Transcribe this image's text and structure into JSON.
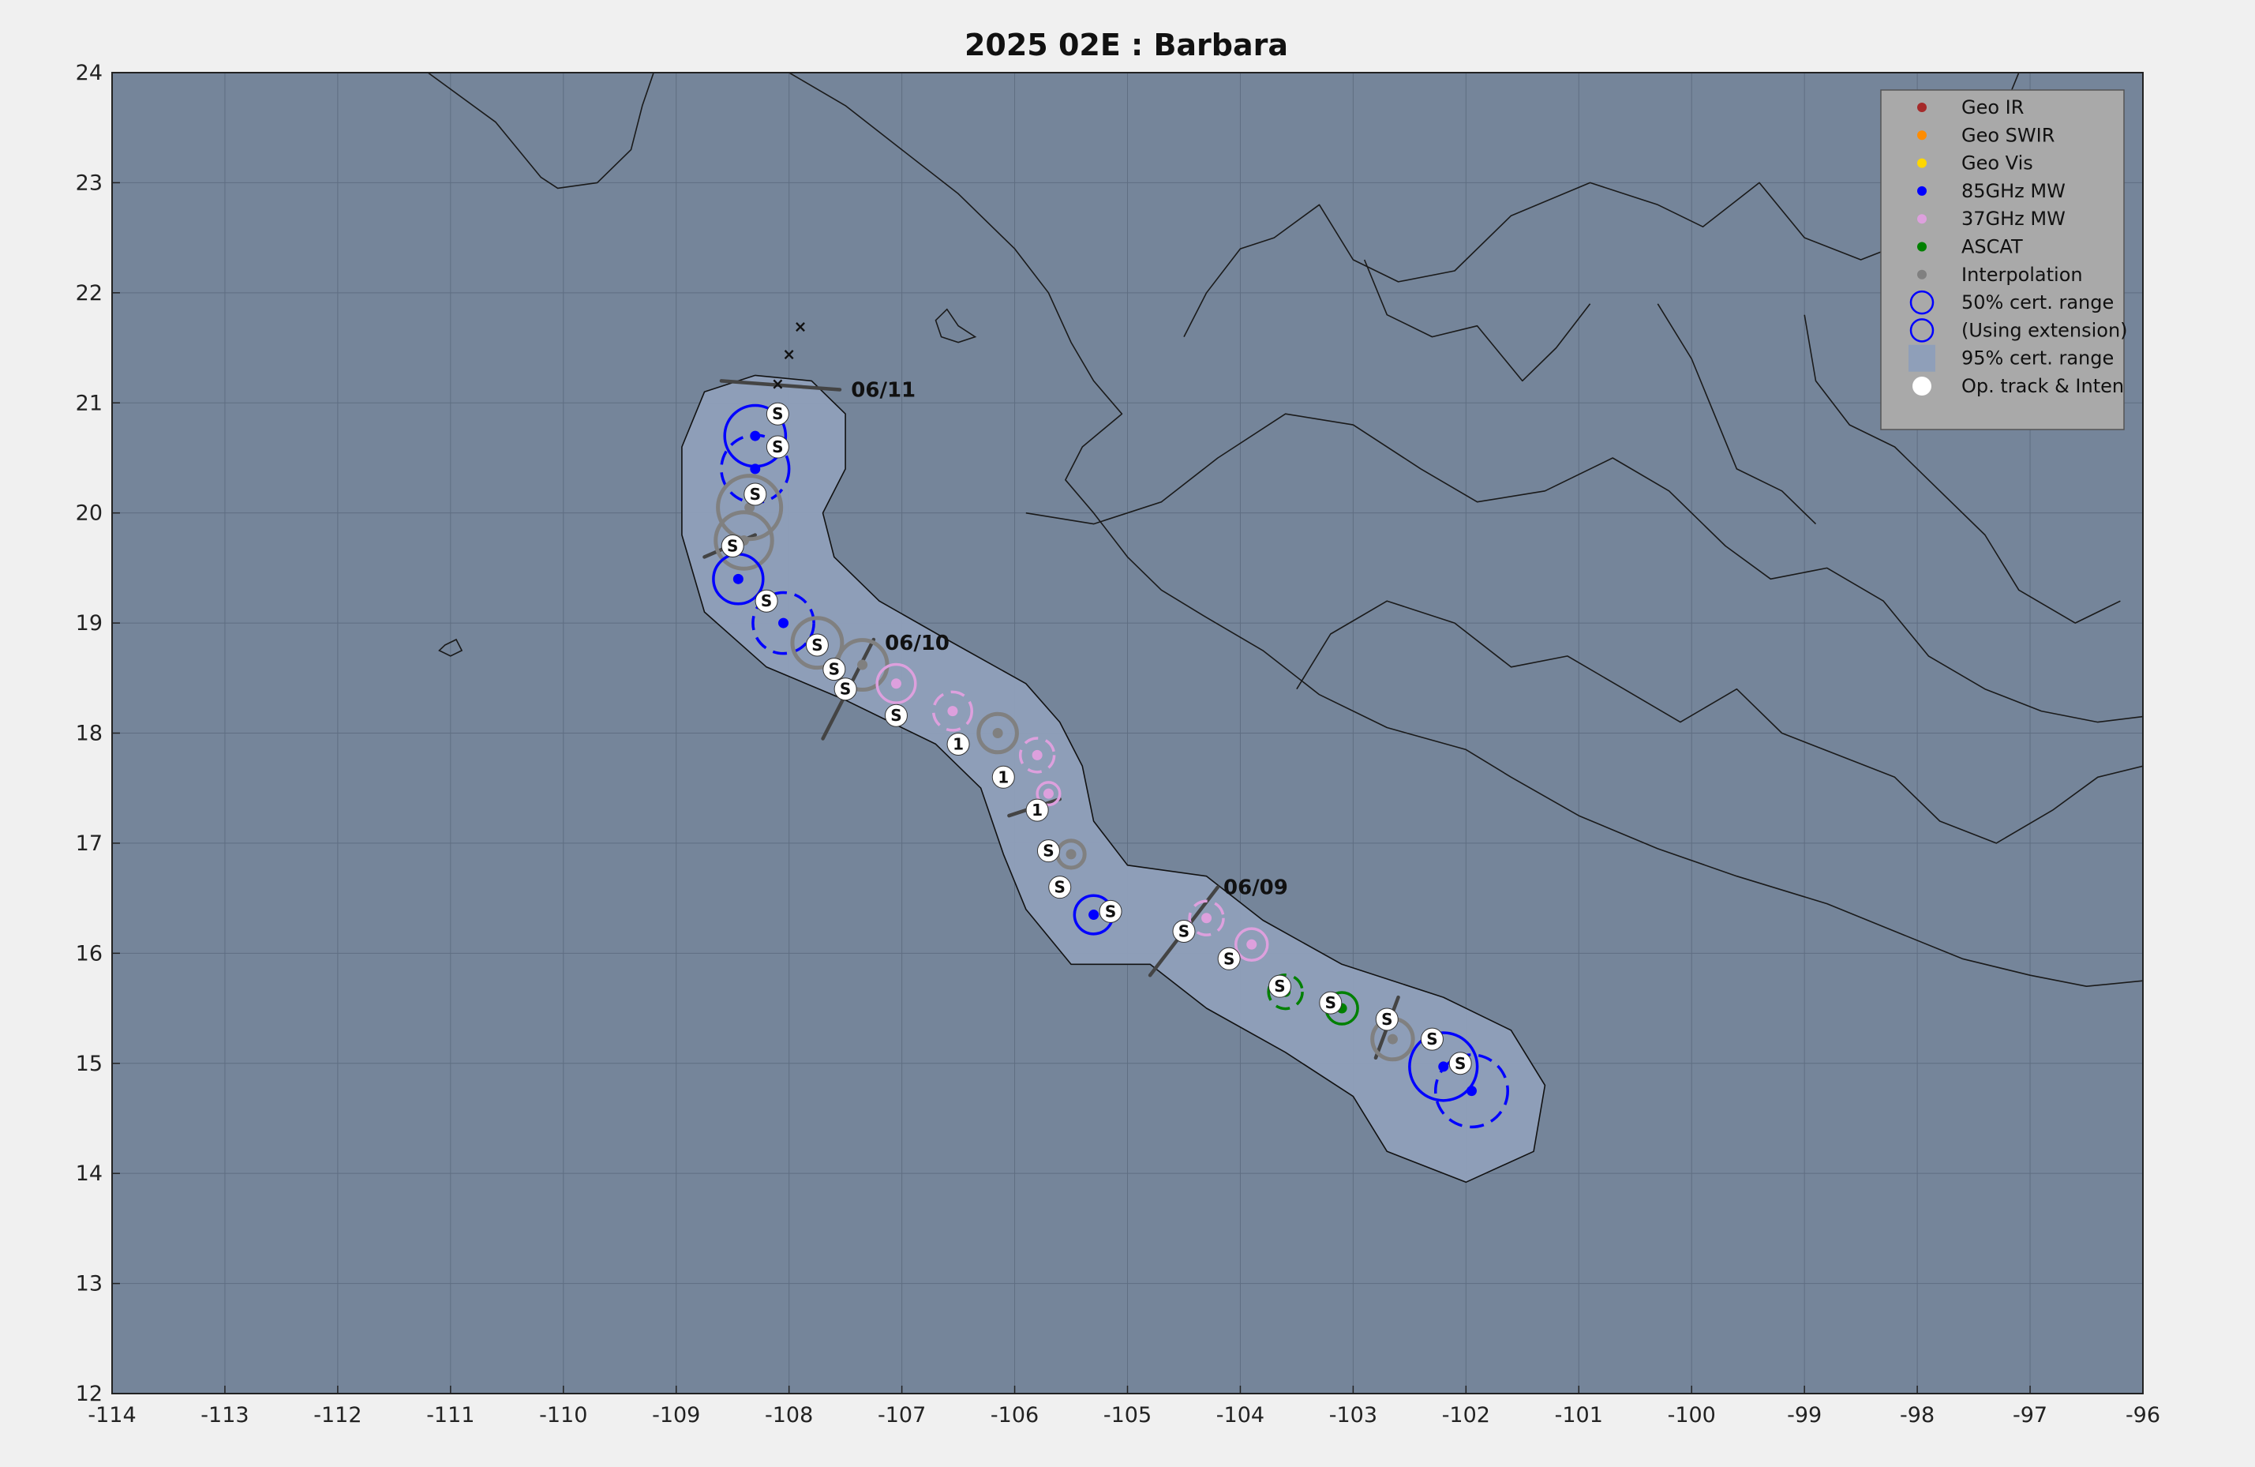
{
  "title": "2025  02E :  Barbara",
  "colors": {
    "figure_bg": "#f0f0f0",
    "ocean": "#75859a",
    "cone": "#8f9fb9",
    "geo_ir": "#a52a2a",
    "geo_swir": "#ff8c00",
    "geo_vis": "#ffd700",
    "mw85": "#0000ff",
    "mw37": "#dda0dd",
    "ascat": "#008000",
    "interp": "#808080",
    "optrack": "#ffffff"
  },
  "axes": {
    "xlim": [
      -114,
      -96
    ],
    "ylim": [
      12,
      24
    ],
    "xticks": [
      "-114",
      "-113",
      "-112",
      "-111",
      "-110",
      "-109",
      "-108",
      "-107",
      "-106",
      "-105",
      "-104",
      "-103",
      "-102",
      "-101",
      "-100",
      "-99",
      "-98",
      "-97",
      "-96"
    ],
    "yticks": [
      "12",
      "13",
      "14",
      "15",
      "16",
      "17",
      "18",
      "19",
      "20",
      "21",
      "22",
      "23",
      "24"
    ],
    "grid": true
  },
  "legend": {
    "placement": "top-right",
    "items": [
      {
        "label": "Geo IR",
        "kind": "dot",
        "color": "#a52a2a"
      },
      {
        "label": "Geo SWIR",
        "kind": "dot",
        "color": "#ff8c00"
      },
      {
        "label": "Geo Vis",
        "kind": "dot",
        "color": "#ffd700"
      },
      {
        "label": "85GHz MW",
        "kind": "dot",
        "color": "#0000ff"
      },
      {
        "label": "37GHz MW",
        "kind": "dot",
        "color": "#dda0dd"
      },
      {
        "label": "ASCAT",
        "kind": "dot",
        "color": "#008000"
      },
      {
        "label": "Interpolation",
        "kind": "dot",
        "color": "#808080"
      },
      {
        "label": "50% cert. range",
        "kind": "circle",
        "color": "#0000ff"
      },
      {
        "label": "(Using extension)",
        "kind": "circle",
        "color": "#0000ff"
      },
      {
        "label": "95% cert. range",
        "kind": "square",
        "color": "#8f9fb9"
      },
      {
        "label": "Op. track & Inten",
        "kind": "white-dot",
        "color": "#ffffff"
      }
    ]
  },
  "cone_95": [
    [
      -108.3,
      21.25
    ],
    [
      -107.8,
      21.2
    ],
    [
      -107.5,
      20.9
    ],
    [
      -107.5,
      20.4
    ],
    [
      -107.7,
      20.0
    ],
    [
      -107.6,
      19.6
    ],
    [
      -107.2,
      19.2
    ],
    [
      -106.6,
      18.85
    ],
    [
      -105.9,
      18.45
    ],
    [
      -105.6,
      18.1
    ],
    [
      -105.4,
      17.7
    ],
    [
      -105.3,
      17.2
    ],
    [
      -105.0,
      16.8
    ],
    [
      -104.3,
      16.7
    ],
    [
      -103.8,
      16.3
    ],
    [
      -103.1,
      15.9
    ],
    [
      -102.2,
      15.6
    ],
    [
      -101.6,
      15.3
    ],
    [
      -101.3,
      14.8
    ],
    [
      -101.4,
      14.2
    ],
    [
      -102.0,
      13.92
    ],
    [
      -102.7,
      14.2
    ],
    [
      -103.0,
      14.7
    ],
    [
      -103.6,
      15.1
    ],
    [
      -104.3,
      15.5
    ],
    [
      -104.8,
      15.9
    ],
    [
      -105.5,
      15.9
    ],
    [
      -105.9,
      16.4
    ],
    [
      -106.1,
      16.9
    ],
    [
      -106.3,
      17.5
    ],
    [
      -106.7,
      17.9
    ],
    [
      -107.5,
      18.3
    ],
    [
      -108.2,
      18.6
    ],
    [
      -108.75,
      19.1
    ],
    [
      -108.95,
      19.8
    ],
    [
      -108.95,
      20.6
    ],
    [
      -108.75,
      21.1
    ]
  ],
  "fixes": [
    {
      "type": "85GHz MW",
      "lon": -108.3,
      "lat": 20.7,
      "r50": 0.27,
      "dashed": false
    },
    {
      "type": "85GHz MW",
      "lon": -108.3,
      "lat": 20.4,
      "r50": 0.3,
      "dashed": true
    },
    {
      "type": "Interpolation",
      "lon": -108.35,
      "lat": 20.05,
      "r50": 0.28,
      "dashed": false
    },
    {
      "type": "Interpolation",
      "lon": -108.4,
      "lat": 19.75,
      "r50": 0.25,
      "dashed": false
    },
    {
      "type": "85GHz MW",
      "lon": -108.45,
      "lat": 19.4,
      "r50": 0.22,
      "dashed": false
    },
    {
      "type": "85GHz MW",
      "lon": -108.05,
      "lat": 19.0,
      "r50": 0.27,
      "dashed": true
    },
    {
      "type": "Interpolation",
      "lon": -107.75,
      "lat": 18.82,
      "r50": 0.22,
      "dashed": false
    },
    {
      "type": "Interpolation",
      "lon": -107.35,
      "lat": 18.62,
      "r50": 0.22,
      "dashed": false
    },
    {
      "type": "37GHz MW",
      "lon": -107.05,
      "lat": 18.45,
      "r50": 0.17,
      "dashed": false
    },
    {
      "type": "37GHz MW",
      "lon": -106.55,
      "lat": 18.2,
      "r50": 0.17,
      "dashed": true
    },
    {
      "type": "Interpolation",
      "lon": -106.15,
      "lat": 18.0,
      "r50": 0.17,
      "dashed": false
    },
    {
      "type": "37GHz MW",
      "lon": -105.8,
      "lat": 17.8,
      "r50": 0.15,
      "dashed": true
    },
    {
      "type": "37GHz MW",
      "lon": -105.7,
      "lat": 17.45,
      "r50": 0.1,
      "dashed": false
    },
    {
      "type": "Interpolation",
      "lon": -105.5,
      "lat": 16.9,
      "r50": 0.12,
      "dashed": false
    },
    {
      "type": "85GHz MW",
      "lon": -105.3,
      "lat": 16.35,
      "r50": 0.17,
      "dashed": false
    },
    {
      "type": "37GHz MW",
      "lon": -104.3,
      "lat": 16.32,
      "r50": 0.15,
      "dashed": true
    },
    {
      "type": "37GHz MW",
      "lon": -103.9,
      "lat": 16.08,
      "r50": 0.14,
      "dashed": false
    },
    {
      "type": "ASCAT",
      "lon": -103.6,
      "lat": 15.65,
      "r50": 0.15,
      "dashed": true
    },
    {
      "type": "ASCAT",
      "lon": -103.1,
      "lat": 15.5,
      "r50": 0.14,
      "dashed": false
    },
    {
      "type": "Interpolation",
      "lon": -102.65,
      "lat": 15.22,
      "r50": 0.18,
      "dashed": false
    },
    {
      "type": "85GHz MW",
      "lon": -102.2,
      "lat": 14.97,
      "r50": 0.3,
      "dashed": false
    },
    {
      "type": "85GHz MW",
      "lon": -101.95,
      "lat": 14.75,
      "r50": 0.32,
      "dashed": true
    }
  ],
  "op_track": [
    {
      "lon": -108.1,
      "lat": 20.9,
      "label": "S"
    },
    {
      "lon": -108.1,
      "lat": 20.6,
      "label": "S"
    },
    {
      "lon": -108.3,
      "lat": 20.17,
      "label": "S"
    },
    {
      "lon": -108.5,
      "lat": 19.7,
      "label": "S"
    },
    {
      "lon": -108.2,
      "lat": 19.2,
      "label": "S"
    },
    {
      "lon": -107.75,
      "lat": 18.8,
      "label": "S"
    },
    {
      "lon": -107.6,
      "lat": 18.58,
      "label": "S"
    },
    {
      "lon": -107.5,
      "lat": 18.4,
      "label": "S"
    },
    {
      "lon": -107.05,
      "lat": 18.16,
      "label": "S"
    },
    {
      "lon": -106.5,
      "lat": 17.9,
      "label": "1"
    },
    {
      "lon": -106.1,
      "lat": 17.6,
      "label": "1"
    },
    {
      "lon": -105.8,
      "lat": 17.3,
      "label": "1"
    },
    {
      "lon": -105.7,
      "lat": 16.93,
      "label": "S"
    },
    {
      "lon": -105.6,
      "lat": 16.6,
      "label": "S"
    },
    {
      "lon": -105.15,
      "lat": 16.38,
      "label": "S"
    },
    {
      "lon": -104.5,
      "lat": 16.2,
      "label": "S"
    },
    {
      "lon": -104.1,
      "lat": 15.95,
      "label": "S"
    },
    {
      "lon": -103.65,
      "lat": 15.7,
      "label": "S"
    },
    {
      "lon": -103.2,
      "lat": 15.55,
      "label": "S"
    },
    {
      "lon": -102.7,
      "lat": 15.4,
      "label": "S"
    },
    {
      "lon": -102.3,
      "lat": 15.22,
      "label": "S"
    },
    {
      "lon": -102.05,
      "lat": 15.0,
      "label": "S"
    }
  ],
  "forecast_x": [
    {
      "lon": -108.1,
      "lat": 21.18
    },
    {
      "lon": -108.0,
      "lat": 21.45
    },
    {
      "lon": -107.9,
      "lat": 21.7
    }
  ],
  "date_markers": [
    {
      "label": "06/11",
      "from": [
        -108.6,
        21.2
      ],
      "to": [
        -107.55,
        21.12
      ],
      "text_at": [
        -107.45,
        21.12
      ]
    },
    {
      "label": "06/10",
      "from": [
        -107.7,
        17.95
      ],
      "to": [
        -107.25,
        18.85
      ],
      "text_at": [
        -107.15,
        18.82
      ]
    },
    {
      "label": "06/09",
      "from": [
        -104.8,
        15.8
      ],
      "to": [
        -104.2,
        16.6
      ],
      "text_at": [
        -104.15,
        16.6
      ]
    }
  ],
  "short_ticks": [
    {
      "from": [
        -108.75,
        19.6
      ],
      "to": [
        -108.3,
        19.8
      ]
    },
    {
      "from": [
        -106.05,
        17.25
      ],
      "to": [
        -105.6,
        17.4
      ]
    },
    {
      "from": [
        -102.8,
        15.05
      ],
      "to": [
        -102.6,
        15.6
      ]
    }
  ],
  "coast_lines": [
    [
      [
        -111.2,
        24.0
      ],
      [
        -110.6,
        23.55
      ],
      [
        -110.2,
        23.05
      ],
      [
        -110.05,
        22.95
      ],
      [
        -109.7,
        23.0
      ],
      [
        -109.4,
        23.3
      ],
      [
        -109.3,
        23.7
      ],
      [
        -109.2,
        24.0
      ]
    ],
    [
      [
        -108.0,
        24.0
      ],
      [
        -107.5,
        23.7
      ],
      [
        -107.0,
        23.3
      ],
      [
        -106.5,
        22.9
      ],
      [
        -106.0,
        22.4
      ],
      [
        -105.7,
        22.0
      ],
      [
        -105.5,
        21.55
      ],
      [
        -105.3,
        21.2
      ],
      [
        -105.05,
        20.9
      ],
      [
        -105.4,
        20.6
      ],
      [
        -105.55,
        20.3
      ],
      [
        -105.3,
        20.0
      ],
      [
        -105.0,
        19.6
      ],
      [
        -104.7,
        19.3
      ],
      [
        -104.3,
        19.05
      ],
      [
        -103.8,
        18.75
      ],
      [
        -103.3,
        18.35
      ],
      [
        -102.7,
        18.05
      ],
      [
        -102.0,
        17.85
      ],
      [
        -101.6,
        17.6
      ],
      [
        -101.0,
        17.25
      ],
      [
        -100.3,
        16.95
      ],
      [
        -99.6,
        16.7
      ],
      [
        -98.8,
        16.45
      ],
      [
        -98.2,
        16.2
      ],
      [
        -97.6,
        15.95
      ],
      [
        -97.0,
        15.8
      ],
      [
        -96.5,
        15.7
      ],
      [
        -96.0,
        15.75
      ]
    ],
    [
      [
        -104.5,
        21.6
      ],
      [
        -104.3,
        22.0
      ],
      [
        -104.0,
        22.4
      ],
      [
        -103.7,
        22.5
      ],
      [
        -103.3,
        22.8
      ],
      [
        -103.0,
        22.3
      ],
      [
        -102.6,
        22.1
      ],
      [
        -102.1,
        22.2
      ],
      [
        -101.6,
        22.7
      ],
      [
        -100.9,
        23.0
      ],
      [
        -100.3,
        22.8
      ],
      [
        -99.9,
        22.6
      ],
      [
        -99.4,
        23.0
      ],
      [
        -99.0,
        22.5
      ],
      [
        -98.5,
        22.3
      ],
      [
        -98.0,
        22.5
      ],
      [
        -97.6,
        23.0
      ],
      [
        -97.3,
        23.5
      ],
      [
        -97.1,
        24.0
      ]
    ],
    [
      [
        -105.9,
        20.0
      ],
      [
        -105.3,
        19.9
      ],
      [
        -104.7,
        20.1
      ],
      [
        -104.2,
        20.5
      ],
      [
        -103.6,
        20.9
      ],
      [
        -103.0,
        20.8
      ],
      [
        -102.4,
        20.4
      ],
      [
        -101.9,
        20.1
      ],
      [
        -101.3,
        20.2
      ],
      [
        -100.7,
        20.5
      ],
      [
        -100.2,
        20.2
      ],
      [
        -99.7,
        19.7
      ],
      [
        -99.3,
        19.4
      ],
      [
        -98.8,
        19.5
      ],
      [
        -98.3,
        19.2
      ],
      [
        -97.9,
        18.7
      ],
      [
        -97.4,
        18.4
      ],
      [
        -96.9,
        18.2
      ],
      [
        -96.4,
        18.1
      ],
      [
        -96.0,
        18.15
      ]
    ],
    [
      [
        -103.5,
        18.4
      ],
      [
        -103.2,
        18.9
      ],
      [
        -102.7,
        19.2
      ],
      [
        -102.1,
        19.0
      ],
      [
        -101.6,
        18.6
      ],
      [
        -101.1,
        18.7
      ],
      [
        -100.6,
        18.4
      ],
      [
        -100.1,
        18.1
      ],
      [
        -99.6,
        18.4
      ],
      [
        -99.2,
        18.0
      ],
      [
        -98.7,
        17.8
      ],
      [
        -98.2,
        17.6
      ],
      [
        -97.8,
        17.2
      ],
      [
        -97.3,
        17.0
      ],
      [
        -96.8,
        17.3
      ],
      [
        -96.4,
        17.6
      ],
      [
        -96.0,
        17.7
      ]
    ],
    [
      [
        -99.0,
        21.8
      ],
      [
        -98.9,
        21.2
      ],
      [
        -98.6,
        20.8
      ],
      [
        -98.2,
        20.6
      ],
      [
        -97.8,
        20.2
      ],
      [
        -97.4,
        19.8
      ],
      [
        -97.1,
        19.3
      ],
      [
        -96.6,
        19.0
      ],
      [
        -96.2,
        19.2
      ]
    ],
    [
      [
        -100.3,
        21.9
      ],
      [
        -100.0,
        21.4
      ],
      [
        -99.8,
        20.9
      ],
      [
        -99.6,
        20.4
      ],
      [
        -99.2,
        20.2
      ],
      [
        -98.9,
        19.9
      ]
    ],
    [
      [
        -102.9,
        22.3
      ],
      [
        -102.7,
        21.8
      ],
      [
        -102.3,
        21.6
      ],
      [
        -101.9,
        21.7
      ],
      [
        -101.5,
        21.2
      ],
      [
        -101.2,
        21.5
      ],
      [
        -100.9,
        21.9
      ]
    ]
  ],
  "islands": [
    [
      [
        -106.7,
        21.75
      ],
      [
        -106.6,
        21.85
      ],
      [
        -106.5,
        21.7
      ],
      [
        -106.35,
        21.6
      ],
      [
        -106.5,
        21.55
      ],
      [
        -106.65,
        21.6
      ]
    ],
    [
      [
        -111.05,
        18.8
      ],
      [
        -110.95,
        18.85
      ],
      [
        -110.9,
        18.75
      ],
      [
        -111.0,
        18.7
      ],
      [
        -111.1,
        18.75
      ]
    ]
  ]
}
